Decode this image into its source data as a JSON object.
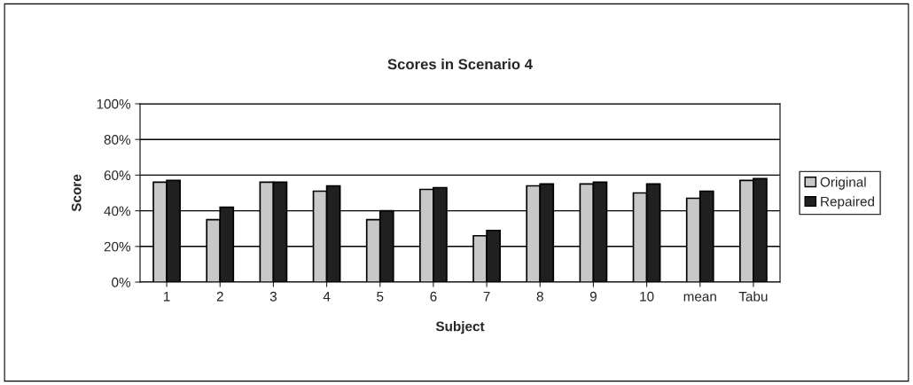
{
  "chart_data": {
    "type": "bar",
    "title": "Scores in Scenario 4",
    "xlabel": "Subject",
    "ylabel": "Score",
    "categories": [
      "1",
      "2",
      "3",
      "4",
      "5",
      "6",
      "7",
      "8",
      "9",
      "10",
      "mean",
      "Tabu"
    ],
    "series": [
      {
        "name": "Original",
        "color": "#c8c8c8",
        "values": [
          56,
          35,
          56,
          51,
          35,
          52,
          26,
          54,
          55,
          50,
          47,
          57
        ]
      },
      {
        "name": "Repaired",
        "color": "#202020",
        "values": [
          57,
          42,
          56,
          54,
          40,
          53,
          29,
          55,
          56,
          55,
          51,
          58
        ]
      }
    ],
    "ylim": [
      0,
      100
    ],
    "yticks": [
      {
        "value": 0,
        "label": "0%"
      },
      {
        "value": 20,
        "label": "20%"
      },
      {
        "value": 40,
        "label": "40%"
      },
      {
        "value": 60,
        "label": "60%"
      },
      {
        "value": 80,
        "label": "80%"
      },
      {
        "value": 100,
        "label": "100%"
      }
    ],
    "grid": "y",
    "legend": "right"
  }
}
